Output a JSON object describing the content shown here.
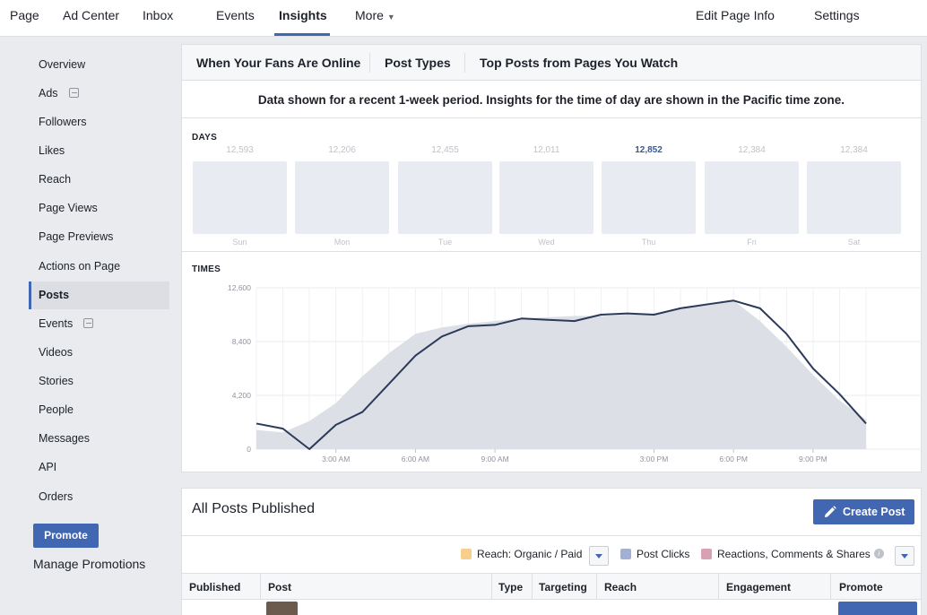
{
  "topnav": {
    "items": [
      "Page",
      "Ad Center",
      "Inbox",
      "Events",
      "Insights",
      "More"
    ],
    "right_items": [
      "Edit Page Info",
      "Settings"
    ],
    "active": "Insights"
  },
  "sidebar": {
    "items": [
      {
        "label": "Overview"
      },
      {
        "label": "Ads",
        "external": true
      },
      {
        "label": "Followers"
      },
      {
        "label": "Likes"
      },
      {
        "label": "Reach"
      },
      {
        "label": "Page Views"
      },
      {
        "label": "Page Previews"
      },
      {
        "label": "Actions on Page"
      },
      {
        "label": "Posts",
        "active": true
      },
      {
        "label": "Events",
        "external": true
      },
      {
        "label": "Videos"
      },
      {
        "label": "Stories"
      },
      {
        "label": "People"
      },
      {
        "label": "Messages"
      },
      {
        "label": "API"
      },
      {
        "label": "Orders"
      }
    ],
    "promote_label": "Promote",
    "manage_label": "Manage Promotions"
  },
  "insights": {
    "tabs": [
      "When Your Fans Are Online",
      "Post Types",
      "Top Posts from Pages You Watch"
    ],
    "notice": "Data shown for a recent 1-week period. Insights for the time of day are shown in the Pacific time zone.",
    "days_label": "DAYS",
    "times_label": "TIMES"
  },
  "chart_data": [
    {
      "type": "bar",
      "title": "DAYS",
      "categories": [
        "Sun",
        "Mon",
        "Tue",
        "Wed",
        "Thu",
        "Fri",
        "Sat"
      ],
      "values": [
        12593,
        12206,
        12455,
        12011,
        12852,
        12384,
        12384
      ],
      "value_labels": [
        "12,593",
        "12,206",
        "12,455",
        "12,011",
        "12,852",
        "12,384",
        "12,384"
      ],
      "highlighted": "Thu",
      "colors": {
        "box": "#e9ebf2",
        "label": "#bec3c9",
        "highlight": "#365899"
      }
    },
    {
      "type": "area",
      "title": "TIMES",
      "x": [
        0,
        1,
        2,
        3,
        4,
        5,
        6,
        7,
        8,
        9,
        10,
        11,
        12,
        13,
        14,
        15,
        16,
        17,
        18,
        19,
        20,
        21,
        22,
        23
      ],
      "x_tick_labels": [
        "3:00 AM",
        "6:00 AM",
        "9:00 AM",
        "3:00 PM",
        "6:00 PM",
        "9:00 PM"
      ],
      "x_tick_hours": [
        3,
        6,
        9,
        15,
        18,
        21
      ],
      "ylim": [
        0,
        12600
      ],
      "y_ticks": [
        0,
        4200,
        8400,
        12600
      ],
      "y_tick_labels": [
        "0",
        "4,200",
        "8,400",
        "12,600"
      ],
      "grid": true,
      "series": [
        {
          "values": [
            1500,
            1300,
            2200,
            3600,
            5700,
            7500,
            9000,
            9500,
            9800,
            10000,
            10200,
            10300,
            10400,
            10400,
            10500,
            10600,
            11000,
            11400,
            11600,
            10000,
            8000,
            5800,
            3800,
            2300
          ],
          "style": "area",
          "color": "#dcdfe6"
        },
        {
          "values": [
            2000,
            1600,
            0,
            1900,
            2900,
            5100,
            7300,
            8800,
            9600,
            9700,
            10200,
            10100,
            10000,
            10500,
            10600,
            10500,
            11000,
            11300,
            11600,
            11000,
            9000,
            6300,
            4300,
            2000
          ],
          "style": "line",
          "color": "#2c3a5a"
        }
      ]
    }
  ],
  "posts": {
    "title": "All Posts Published",
    "create_label": "Create Post",
    "legend": [
      {
        "label": "Reach: Organic / Paid",
        "color": "#f7ce8d"
      },
      {
        "label": "Post Clicks",
        "color": "#a3b0d1"
      },
      {
        "label": "Reactions, Comments & Shares",
        "color": "#d9a0b3"
      }
    ],
    "columns": [
      "Published",
      "Post",
      "Type",
      "Targeting",
      "Reach",
      "Engagement",
      "Promote"
    ]
  }
}
